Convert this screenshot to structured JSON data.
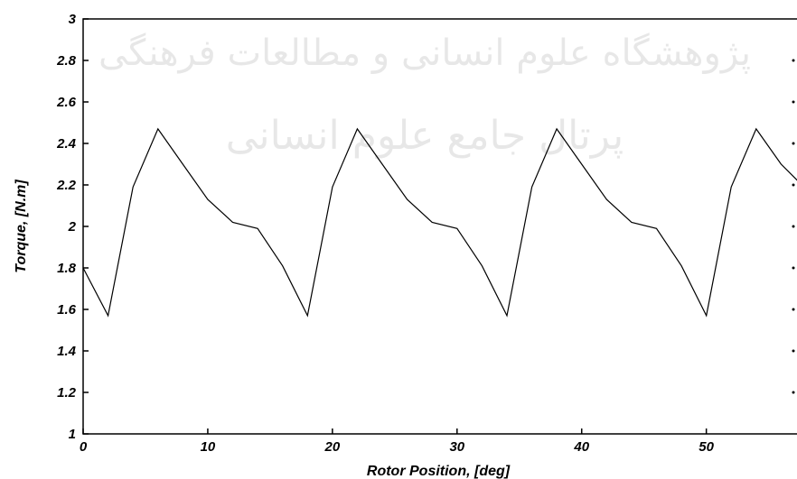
{
  "chart_data": {
    "type": "line",
    "title": "",
    "xlabel": "Rotor Position, [deg]",
    "ylabel": "Torque, [N.m]",
    "xlim": [
      0,
      58
    ],
    "ylim": [
      1,
      3
    ],
    "xticks": [
      0,
      10,
      20,
      30,
      40,
      50
    ],
    "xtick_labels": [
      "0",
      "10",
      "20",
      "30",
      "40",
      "50"
    ],
    "yticks": [
      1,
      1.2,
      1.4,
      1.6,
      1.8,
      2,
      2.2,
      2.4,
      2.6,
      2.8,
      3
    ],
    "ytick_labels": [
      "1",
      "1.2",
      "1.4",
      "1.6",
      "1.8",
      "2",
      "2.2",
      "2.4",
      "2.6",
      "2.8",
      "3"
    ],
    "grid": false,
    "series": [
      {
        "color": "#000000",
        "x": [
          0,
          2,
          4,
          6,
          8,
          10,
          12,
          14,
          16,
          18,
          20,
          22,
          24,
          26,
          28,
          30,
          32,
          34,
          36,
          38,
          40,
          42,
          44,
          46,
          48,
          50,
          52,
          54,
          56,
          58
        ],
        "y": [
          1.8,
          1.57,
          2.19,
          2.47,
          2.3,
          2.13,
          2.02,
          1.99,
          1.81,
          1.57,
          2.19,
          2.47,
          2.3,
          2.13,
          2.02,
          1.99,
          1.81,
          1.57,
          2.19,
          2.47,
          2.3,
          2.13,
          2.02,
          1.99,
          1.81,
          1.57,
          2.19,
          2.47,
          2.3,
          2.18
        ]
      }
    ]
  },
  "watermark": {
    "line1": "پژوهشگاه علوم انسانی و مطالعات فرهنگی",
    "line2": "پرتال جامع علوم انسانی"
  }
}
